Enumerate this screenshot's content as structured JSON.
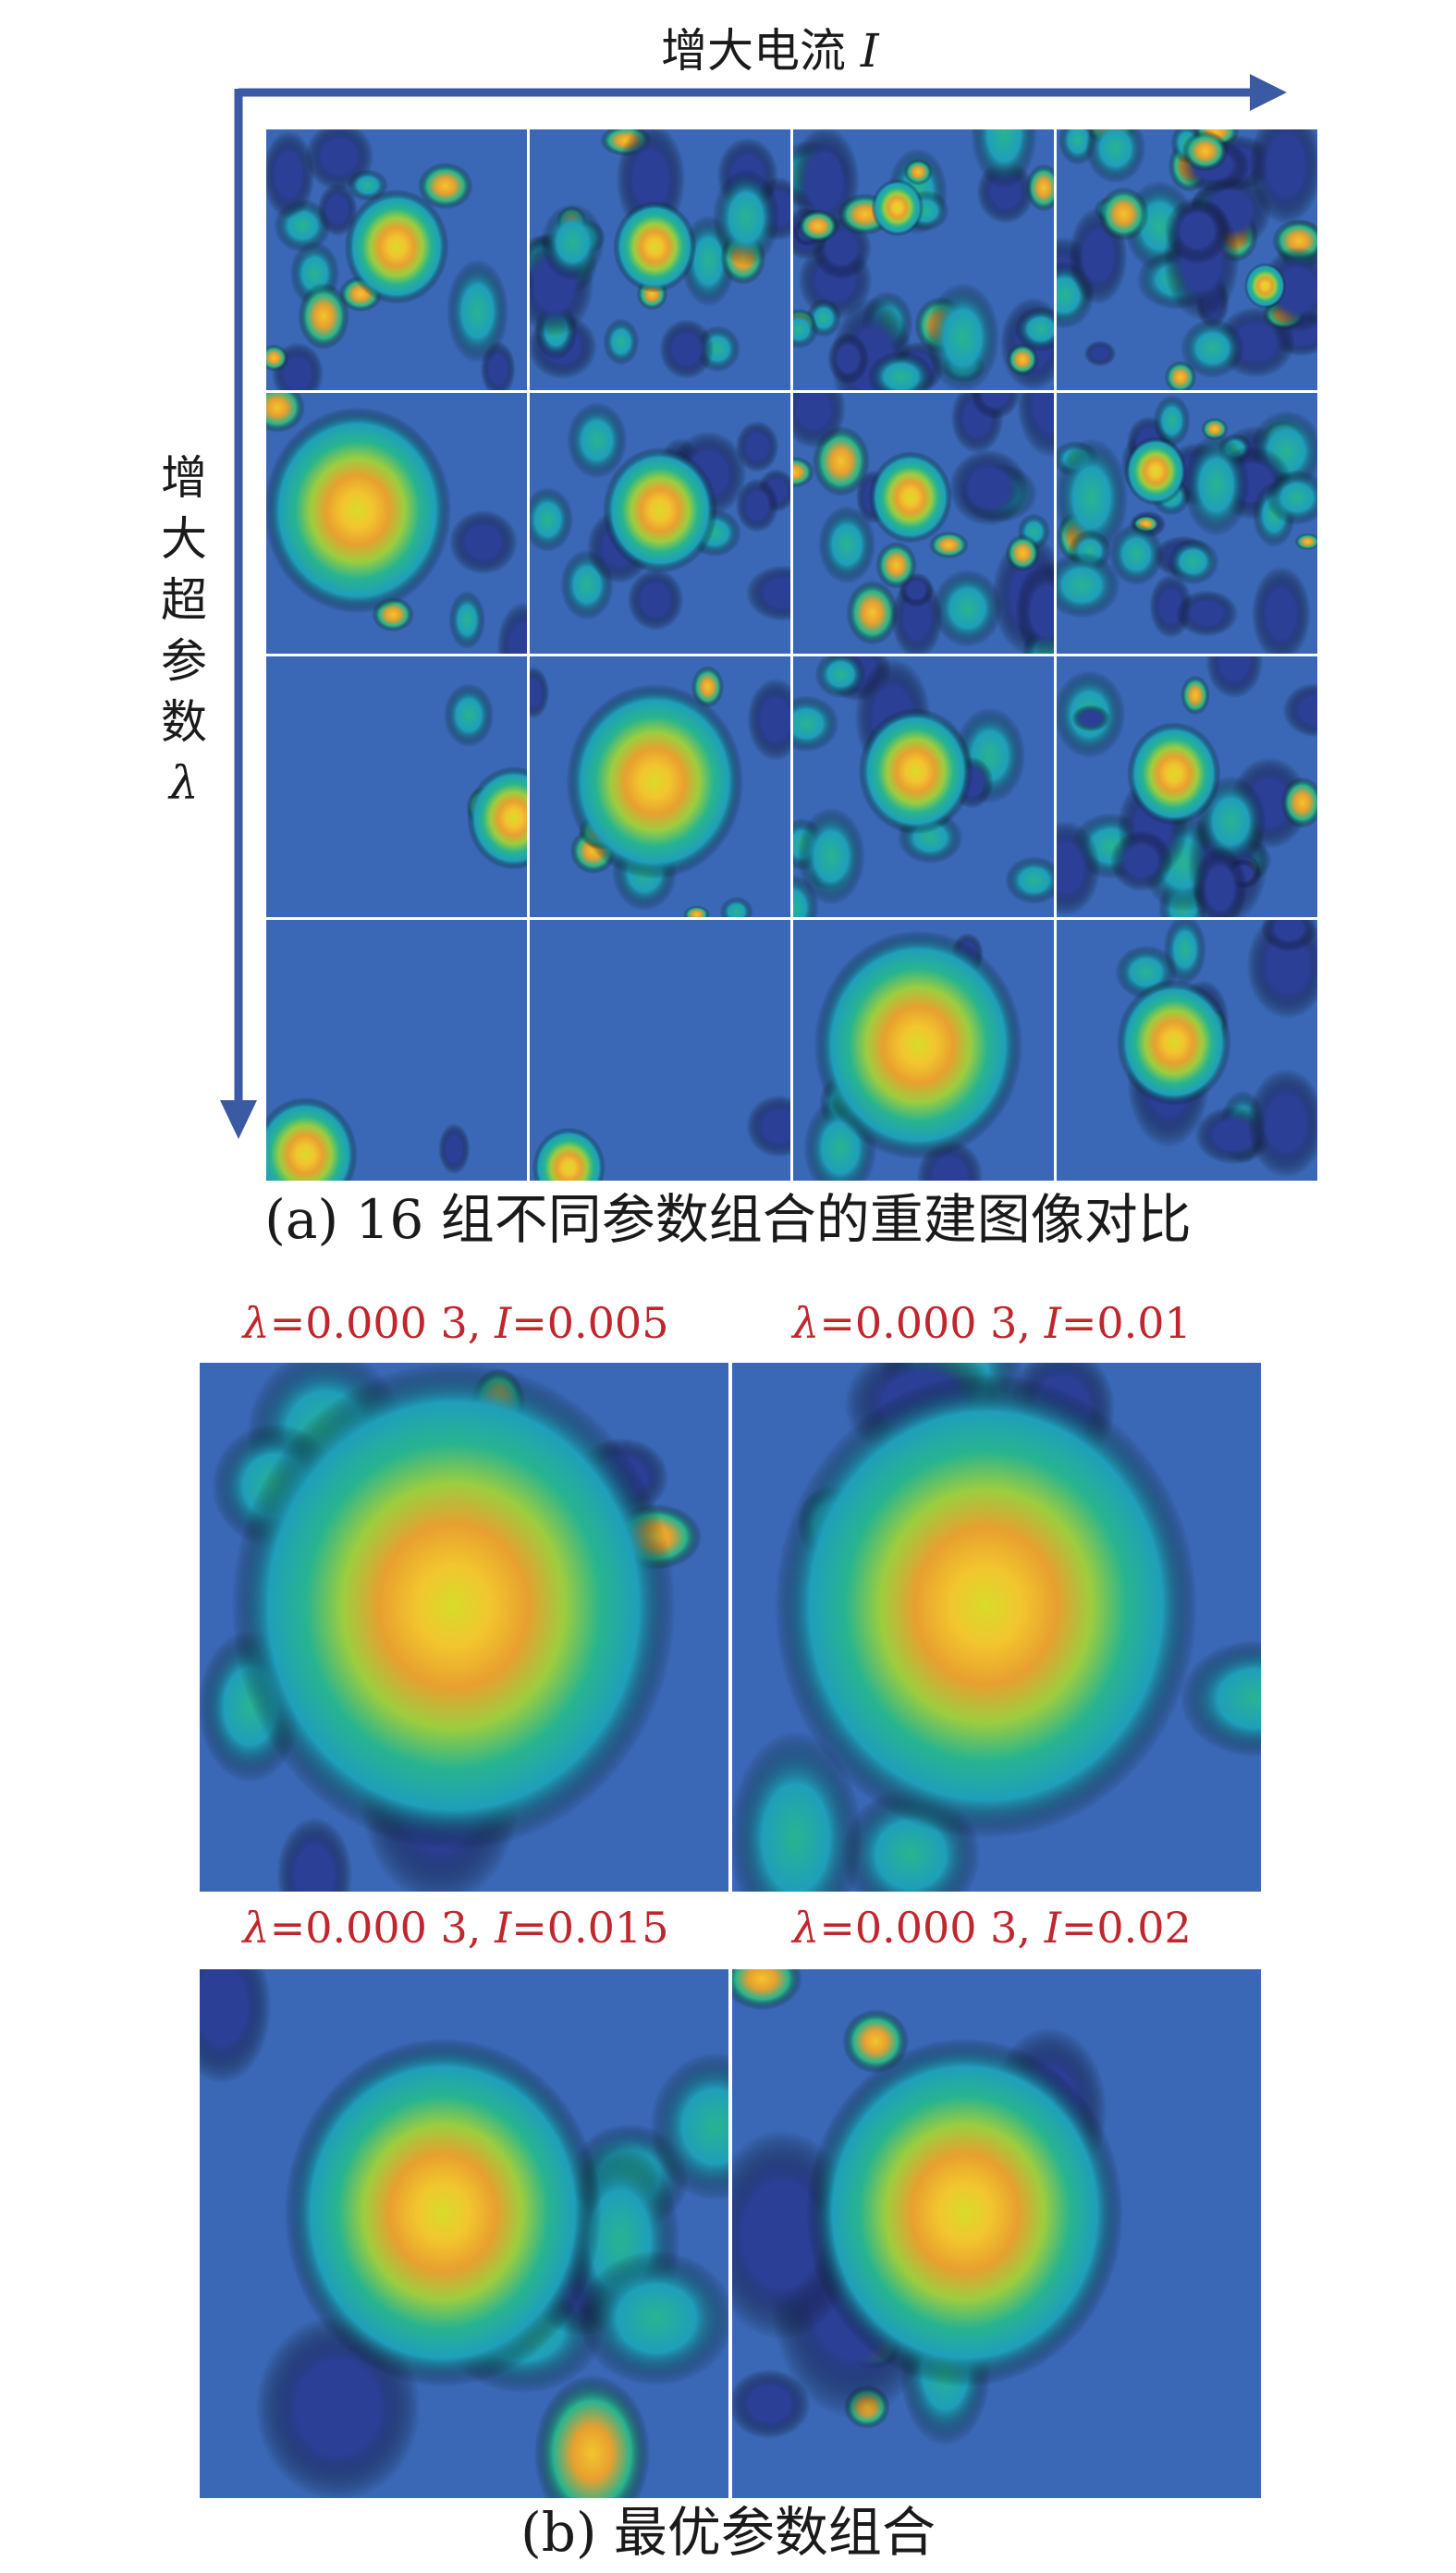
{
  "figure": {
    "x_axis": {
      "text": "增大电流",
      "symbol": "I"
    },
    "y_axis": {
      "chars": [
        "增",
        "大",
        "超",
        "参",
        "数"
      ],
      "symbol": "λ"
    },
    "caption_a": "(a) 16 组不同参数组合的重建图像对比",
    "caption_b": "(b) 最优参数组合",
    "grid": {
      "rows": 4,
      "cols": 4
    },
    "best_combinations": [
      {
        "lambda_label": "λ",
        "lambda_value": "=0.000 3, ",
        "current_label": "I",
        "current_value": "=0.005"
      },
      {
        "lambda_label": "λ",
        "lambda_value": "=0.000 3, ",
        "current_label": "I",
        "current_value": "=0.01"
      },
      {
        "lambda_label": "λ",
        "lambda_value": "=0.000 3, ",
        "current_label": "I",
        "current_value": "=0.015"
      },
      {
        "lambda_label": "λ",
        "lambda_value": "=0.000 3, ",
        "current_label": "I",
        "current_value": "=0.02"
      }
    ],
    "colormap": [
      "#2c3f97",
      "#3a68b6",
      "#1f9fbb",
      "#27b48f",
      "#9ccd3f",
      "#e8a02f",
      "#f2c52e",
      "#d8dc2a"
    ],
    "arrow_color": "#3a5aa3"
  }
}
